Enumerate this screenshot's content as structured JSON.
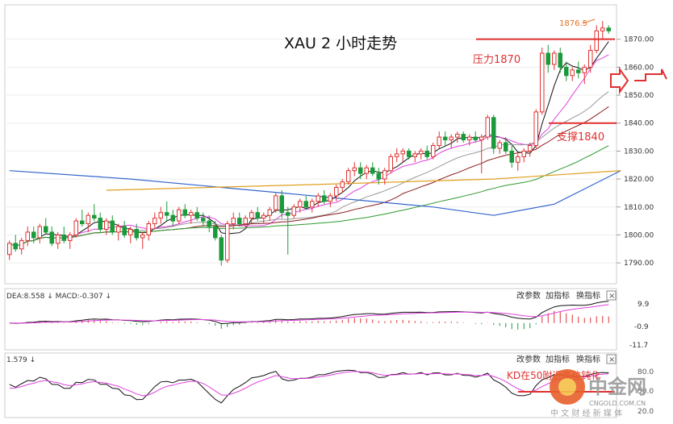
{
  "main": {
    "title": "XAU 2 小时走势",
    "resistance_label": "压力1870",
    "support_label": "支撑1840",
    "high_marker": "1876.5",
    "y_ticks": [
      "1870.00",
      "1860.00",
      "1850.00",
      "1840.00",
      "1830.00",
      "1820.00",
      "1810.00",
      "1800.00",
      "1790.00"
    ],
    "resistance_value": 1870,
    "support_value": 1840
  },
  "macd_panel": {
    "legend": "DEA:8.558 ↓ MACD:-0.307 ↓",
    "buttons": [
      "改参数",
      "加指标",
      "换指标"
    ],
    "close": "×",
    "ticks": [
      "9.9",
      "-0.9",
      "-11.7"
    ]
  },
  "kd_panel": {
    "legend": "1.579 ↓",
    "buttons": [
      "改参数",
      "加指标",
      "换指标"
    ],
    "close": "×",
    "annotation": "KD在50附近高位钝化",
    "ticks": [
      "80.0",
      "50.0",
      "20.0"
    ]
  },
  "watermark": {
    "brand": "中金网",
    "url": "CNGOLD.COM.CN",
    "sub": "中 文 财 经 新 媒 体"
  },
  "chart_data": {
    "type": "candlestick",
    "symbol": "XAU",
    "timeframe": "2H",
    "ylim": [
      1786,
      1880
    ],
    "candles": [
      [
        1793,
        1798,
        1791,
        1797
      ],
      [
        1797,
        1800,
        1794,
        1795
      ],
      [
        1795,
        1799,
        1793,
        1798
      ],
      [
        1798,
        1803,
        1796,
        1801
      ],
      [
        1801,
        1803,
        1797,
        1799
      ],
      [
        1799,
        1804,
        1797,
        1803
      ],
      [
        1803,
        1806,
        1800,
        1801
      ],
      [
        1801,
        1803,
        1796,
        1797
      ],
      [
        1797,
        1801,
        1795,
        1800
      ],
      [
        1800,
        1803,
        1797,
        1798
      ],
      [
        1798,
        1801,
        1795,
        1800
      ],
      [
        1800,
        1806,
        1799,
        1805
      ],
      [
        1805,
        1809,
        1803,
        1804
      ],
      [
        1804,
        1808,
        1801,
        1807
      ],
      [
        1807,
        1811,
        1805,
        1806
      ],
      [
        1806,
        1808,
        1801,
        1802
      ],
      [
        1802,
        1806,
        1800,
        1805
      ],
      [
        1805,
        1807,
        1800,
        1801
      ],
      [
        1801,
        1804,
        1798,
        1803
      ],
      [
        1803,
        1805,
        1799,
        1800
      ],
      [
        1800,
        1803,
        1797,
        1802
      ],
      [
        1802,
        1804,
        1798,
        1799
      ],
      [
        1799,
        1801,
        1795,
        1800
      ],
      [
        1800,
        1805,
        1798,
        1804
      ],
      [
        1804,
        1808,
        1802,
        1806
      ],
      [
        1806,
        1810,
        1804,
        1808
      ],
      [
        1808,
        1812,
        1805,
        1807
      ],
      [
        1807,
        1809,
        1803,
        1805
      ],
      [
        1805,
        1810,
        1804,
        1809
      ],
      [
        1809,
        1811,
        1806,
        1807
      ],
      [
        1807,
        1809,
        1804,
        1808
      ],
      [
        1808,
        1810,
        1805,
        1806
      ],
      [
        1806,
        1808,
        1803,
        1805
      ],
      [
        1805,
        1807,
        1801,
        1803
      ],
      [
        1803,
        1805,
        1798,
        1799
      ],
      [
        1799,
        1800,
        1789,
        1791
      ],
      [
        1791,
        1805,
        1790,
        1804
      ],
      [
        1804,
        1808,
        1802,
        1806
      ],
      [
        1806,
        1808,
        1803,
        1804
      ],
      [
        1804,
        1807,
        1802,
        1806
      ],
      [
        1806,
        1809,
        1804,
        1808
      ],
      [
        1808,
        1810,
        1805,
        1806
      ],
      [
        1806,
        1808,
        1804,
        1807
      ],
      [
        1807,
        1810,
        1805,
        1809
      ],
      [
        1809,
        1815,
        1808,
        1814
      ],
      [
        1814,
        1816,
        1806,
        1808
      ],
      [
        1808,
        1810,
        1793,
        1807
      ],
      [
        1807,
        1811,
        1806,
        1810
      ],
      [
        1810,
        1813,
        1808,
        1812
      ],
      [
        1812,
        1814,
        1809,
        1810
      ],
      [
        1810,
        1813,
        1808,
        1812
      ],
      [
        1812,
        1815,
        1810,
        1814
      ],
      [
        1814,
        1816,
        1811,
        1812
      ],
      [
        1812,
        1815,
        1810,
        1814
      ],
      [
        1814,
        1818,
        1812,
        1817
      ],
      [
        1817,
        1820,
        1815,
        1819
      ],
      [
        1819,
        1824,
        1818,
        1823
      ],
      [
        1823,
        1826,
        1821,
        1824
      ],
      [
        1824,
        1826,
        1820,
        1822
      ],
      [
        1822,
        1825,
        1820,
        1824
      ],
      [
        1824,
        1826,
        1821,
        1822
      ],
      [
        1822,
        1824,
        1818,
        1820
      ],
      [
        1820,
        1824,
        1818,
        1823
      ],
      [
        1823,
        1829,
        1822,
        1828
      ],
      [
        1828,
        1831,
        1826,
        1829
      ],
      [
        1829,
        1831,
        1826,
        1830
      ],
      [
        1830,
        1831,
        1827,
        1828
      ],
      [
        1828,
        1830,
        1826,
        1829
      ],
      [
        1829,
        1831,
        1827,
        1830
      ],
      [
        1830,
        1832,
        1827,
        1828
      ],
      [
        1828,
        1833,
        1827,
        1832
      ],
      [
        1832,
        1837,
        1831,
        1835
      ],
      [
        1835,
        1837,
        1832,
        1834
      ],
      [
        1834,
        1836,
        1831,
        1835
      ],
      [
        1835,
        1837,
        1833,
        1836
      ],
      [
        1836,
        1837,
        1833,
        1834
      ],
      [
        1834,
        1836,
        1832,
        1835
      ],
      [
        1835,
        1837,
        1833,
        1834
      ],
      [
        1834,
        1836,
        1822,
        1835
      ],
      [
        1835,
        1843,
        1834,
        1842
      ],
      [
        1842,
        1843,
        1829,
        1831
      ],
      [
        1831,
        1834,
        1829,
        1833
      ],
      [
        1833,
        1835,
        1829,
        1830
      ],
      [
        1830,
        1832,
        1824,
        1826
      ],
      [
        1826,
        1829,
        1823,
        1828
      ],
      [
        1828,
        1831,
        1826,
        1830
      ],
      [
        1830,
        1833,
        1828,
        1832
      ],
      [
        1832,
        1845,
        1831,
        1844
      ],
      [
        1844,
        1867,
        1843,
        1865
      ],
      [
        1865,
        1868,
        1858,
        1861
      ],
      [
        1861,
        1866,
        1859,
        1865
      ],
      [
        1865,
        1867,
        1858,
        1860
      ],
      [
        1860,
        1862,
        1855,
        1857
      ],
      [
        1857,
        1860,
        1855,
        1859
      ],
      [
        1859,
        1862,
        1856,
        1858
      ],
      [
        1858,
        1861,
        1854,
        1860
      ],
      [
        1860,
        1868,
        1858,
        1866
      ],
      [
        1866,
        1875,
        1865,
        1873
      ],
      [
        1873,
        1876.5,
        1870,
        1874
      ],
      [
        1874,
        1875,
        1872,
        1873
      ]
    ],
    "ma_lines": [
      {
        "period": 5,
        "color": "#111111"
      },
      {
        "period": 10,
        "color": "#e040e0"
      },
      {
        "period": 20,
        "color": "#999999"
      },
      {
        "period": 30,
        "color": "#8b1a1a"
      },
      {
        "period": 60,
        "color": "#2e9a2e"
      }
    ],
    "ma120": {
      "color": "#3366cc",
      "points": [
        [
          0,
          1823
        ],
        [
          20,
          1820
        ],
        [
          45,
          1815
        ],
        [
          70,
          1810
        ],
        [
          80,
          1807
        ],
        [
          90,
          1811
        ],
        [
          101,
          1823
        ]
      ]
    },
    "ma_flat": {
      "color": "#e0a020",
      "points": [
        [
          16,
          1816
        ],
        [
          50,
          1818
        ],
        [
          80,
          1820
        ],
        [
          101,
          1823
        ]
      ]
    },
    "macd": {
      "ylim": [
        -11.7,
        9.9
      ]
    },
    "kd": {
      "ylim": [
        0,
        100
      ]
    }
  }
}
